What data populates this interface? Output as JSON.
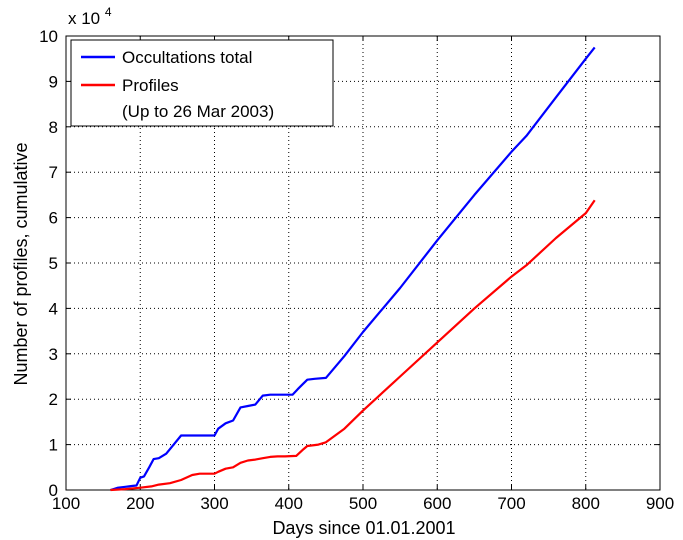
{
  "chart_data": {
    "type": "line",
    "xlabel": "Days since 01.01.2001",
    "ylabel": "Number of profiles, cumulative",
    "y_multiplier_label": "x 10",
    "y_multiplier_exponent": "4",
    "xlim": [
      100,
      900
    ],
    "ylim": [
      0,
      10
    ],
    "xticks": [
      100,
      200,
      300,
      400,
      500,
      600,
      700,
      800,
      900
    ],
    "yticks": [
      0,
      1,
      2,
      3,
      4,
      5,
      6,
      7,
      8,
      9,
      10
    ],
    "grid": true,
    "legend_position": "top-left",
    "legend_note": "(Up to 26 Mar 2003)",
    "series": [
      {
        "name": "Occultations total",
        "color": "#0000ff",
        "x": [
          160,
          170,
          180,
          190,
          195,
          200,
          205,
          212,
          218,
          225,
          235,
          245,
          255,
          268,
          275,
          300,
          305,
          315,
          325,
          335,
          345,
          355,
          365,
          375,
          385,
          405,
          412,
          420,
          425,
          435,
          450,
          475,
          500,
          550,
          600,
          650,
          700,
          720,
          760,
          800,
          812
        ],
        "y": [
          0.0,
          0.05,
          0.07,
          0.09,
          0.1,
          0.27,
          0.3,
          0.5,
          0.68,
          0.7,
          0.8,
          1.0,
          1.2,
          1.2,
          1.2,
          1.2,
          1.35,
          1.47,
          1.53,
          1.82,
          1.85,
          1.88,
          2.08,
          2.1,
          2.1,
          2.1,
          2.22,
          2.35,
          2.43,
          2.45,
          2.47,
          2.95,
          3.48,
          4.45,
          5.5,
          6.5,
          7.45,
          7.8,
          8.65,
          9.5,
          9.75
        ]
      },
      {
        "name": "Profiles",
        "color": "#ff0000",
        "x": [
          160,
          180,
          200,
          215,
          225,
          240,
          255,
          270,
          280,
          300,
          305,
          315,
          325,
          335,
          345,
          355,
          365,
          375,
          385,
          395,
          410,
          420,
          425,
          440,
          450,
          475,
          500,
          550,
          600,
          650,
          700,
          720,
          760,
          800,
          812
        ],
        "y": [
          0.0,
          0.02,
          0.05,
          0.08,
          0.12,
          0.15,
          0.22,
          0.33,
          0.36,
          0.36,
          0.4,
          0.47,
          0.5,
          0.6,
          0.65,
          0.67,
          0.7,
          0.73,
          0.74,
          0.74,
          0.75,
          0.9,
          0.97,
          1.0,
          1.05,
          1.35,
          1.75,
          2.5,
          3.25,
          4.0,
          4.7,
          4.95,
          5.55,
          6.1,
          6.38
        ]
      }
    ]
  }
}
